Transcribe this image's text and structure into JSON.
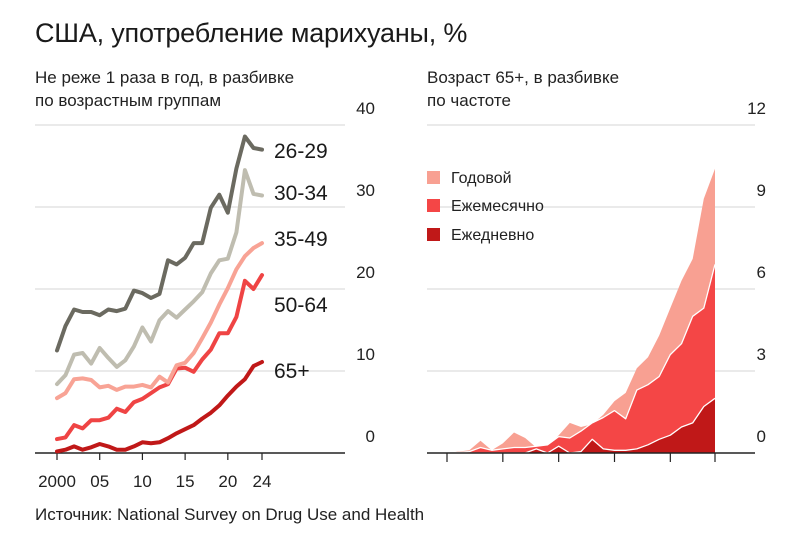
{
  "title": "США, употребление марихуаны, %",
  "source": "Источник: National Survey on Drug Use and Health",
  "chart_data": [
    {
      "type": "line",
      "subtitle": [
        "Не реже 1 раза в год, в разбивке",
        "по возрастным группам"
      ],
      "x": [
        2000,
        2001,
        2002,
        2003,
        2004,
        2005,
        2006,
        2007,
        2008,
        2009,
        2010,
        2011,
        2012,
        2013,
        2014,
        2015,
        2016,
        2017,
        2018,
        2019,
        2020,
        2021,
        2022,
        2023,
        2024
      ],
      "xticks": [
        2000,
        2005,
        2010,
        2015,
        2020,
        2024
      ],
      "xtick_labels": [
        "2000",
        "05",
        "10",
        "15",
        "20",
        "24"
      ],
      "ylim": [
        0,
        40
      ],
      "yticks": [
        0,
        10,
        20,
        30,
        40
      ],
      "ytick_labels": [
        "0",
        "10",
        "20",
        "30",
        "40"
      ],
      "grid": true,
      "series": [
        {
          "name": "26-29",
          "color": "#6b6a60",
          "values": [
            12.5,
            15.5,
            17.5,
            17.2,
            17.2,
            16.8,
            17.5,
            17.3,
            17.6,
            19.8,
            19.5,
            18.9,
            19.4,
            23.5,
            23.0,
            23.8,
            25.6,
            25.6,
            29.9,
            31.5,
            29.3,
            34.7,
            38.6,
            37.2,
            37.0
          ]
        },
        {
          "name": "30-34",
          "color": "#bfbdb0",
          "values": [
            8.4,
            9.5,
            12.0,
            12.2,
            10.9,
            12.8,
            11.6,
            10.5,
            11.3,
            13.0,
            15.3,
            13.6,
            16.2,
            17.3,
            16.5,
            17.5,
            18.5,
            19.6,
            21.9,
            23.5,
            23.7,
            26.9,
            34.5,
            31.6,
            31.4
          ]
        },
        {
          "name": "35-49",
          "color": "#f8a395",
          "values": [
            6.7,
            7.3,
            9.0,
            9.1,
            8.9,
            8.0,
            8.2,
            7.7,
            8.1,
            8.1,
            8.3,
            8.0,
            9.3,
            8.6,
            10.7,
            11.0,
            12.2,
            14.0,
            15.9,
            18.1,
            20.1,
            22.4,
            24.0,
            25.0,
            25.6
          ]
        },
        {
          "name": "50-64",
          "color": "#ef4444",
          "values": [
            1.7,
            1.9,
            3.4,
            3.0,
            4.0,
            4.0,
            4.3,
            5.4,
            5.0,
            6.2,
            6.6,
            7.3,
            8.0,
            8.4,
            10.3,
            10.4,
            9.9,
            11.4,
            12.6,
            14.6,
            14.6,
            16.6,
            21.0,
            20.0,
            21.7
          ]
        },
        {
          "name": "65+",
          "color": "#c01818",
          "values": [
            0.2,
            0.4,
            0.8,
            0.4,
            0.7,
            1.1,
            0.8,
            0.4,
            0.4,
            0.8,
            1.3,
            1.2,
            1.3,
            1.8,
            2.4,
            2.9,
            3.4,
            4.2,
            4.9,
            5.8,
            7.0,
            8.1,
            9.0,
            10.6,
            11.1
          ]
        }
      ]
    },
    {
      "type": "area",
      "stacked": false,
      "subtitle": [
        "Возраст 65+, в разбивке",
        "по частоте"
      ],
      "x": [
        2000,
        2001,
        2002,
        2003,
        2004,
        2005,
        2006,
        2007,
        2008,
        2009,
        2010,
        2011,
        2012,
        2013,
        2014,
        2015,
        2016,
        2017,
        2018,
        2019,
        2020,
        2021,
        2022,
        2023,
        2024
      ],
      "xticks": [
        2000,
        2005,
        2010,
        2015,
        2020,
        2024
      ],
      "ylim": [
        0,
        12
      ],
      "yticks": [
        0,
        3,
        6,
        9,
        12
      ],
      "ytick_labels": [
        "0",
        "3",
        "6",
        "9",
        "12"
      ],
      "grid": true,
      "legend": {
        "position": "top-left"
      },
      "series": [
        {
          "name": "Годовой",
          "color": "#f8a092",
          "values": [
            0.0,
            0.05,
            0.1,
            0.45,
            0.1,
            0.35,
            0.75,
            0.55,
            0.2,
            0.2,
            0.65,
            1.1,
            0.95,
            1.05,
            1.4,
            1.9,
            2.2,
            3.1,
            3.5,
            4.3,
            5.3,
            6.3,
            7.1,
            9.3,
            10.4
          ]
        },
        {
          "name": "Ежемесячно",
          "color": "#f44646",
          "values": [
            0.0,
            0.02,
            0.05,
            0.2,
            0.1,
            0.15,
            0.2,
            0.2,
            0.25,
            0.3,
            0.6,
            0.55,
            0.8,
            1.1,
            1.3,
            1.55,
            1.25,
            2.3,
            2.5,
            2.8,
            3.6,
            4.0,
            5.0,
            5.3,
            6.9
          ]
        },
        {
          "name": "Ежедневно",
          "color": "#c01818",
          "values": [
            0.0,
            0.0,
            0.0,
            0.0,
            0.0,
            0.0,
            0.0,
            0.0,
            0.15,
            0.0,
            0.25,
            0.0,
            0.05,
            0.5,
            0.15,
            0.1,
            0.1,
            0.15,
            0.3,
            0.5,
            0.65,
            0.95,
            1.1,
            1.7,
            2.0
          ]
        }
      ]
    }
  ]
}
